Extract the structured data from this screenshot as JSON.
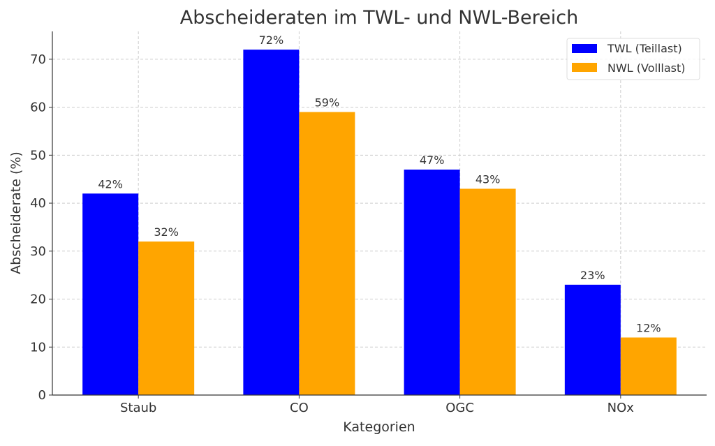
{
  "chart_data": {
    "type": "bar",
    "title": "Abscheideraten im TWL- und NWL-Bereich",
    "xlabel": "Kategorien",
    "ylabel": "Abscheiderate (%)",
    "categories": [
      "Staub",
      "CO",
      "OGC",
      "NOx"
    ],
    "series": [
      {
        "name": "TWL (Teillast)",
        "color": "#0000ff",
        "values": [
          42,
          72,
          47,
          23
        ],
        "labels": [
          "42%",
          "72%",
          "47%",
          "23%"
        ]
      },
      {
        "name": "NWL (Volllast)",
        "color": "#ffa500",
        "values": [
          32,
          59,
          43,
          12
        ],
        "labels": [
          "32%",
          "59%",
          "43%",
          "12%"
        ]
      }
    ],
    "ylim": [
      0,
      75.8
    ],
    "yticks": [
      0,
      10,
      20,
      30,
      40,
      50,
      60,
      70
    ],
    "ytick_labels": [
      "0",
      "10",
      "20",
      "30",
      "40",
      "50",
      "60",
      "70"
    ],
    "grid": true,
    "legend": "top-right"
  }
}
